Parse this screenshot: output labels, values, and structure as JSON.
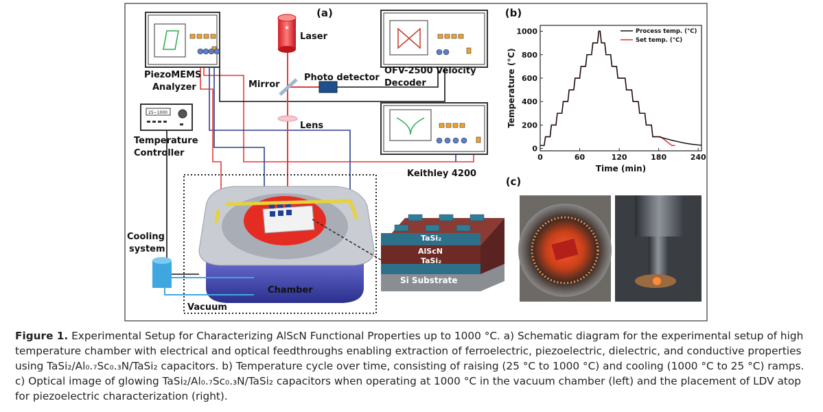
{
  "panels": {
    "a": {
      "label": "(a)",
      "labels": {
        "laser": "Laser",
        "piezo_1": "PiezoMEMS",
        "piezo_2": "Analyzer",
        "mirror": "Mirror",
        "photo": "Photo detector",
        "ofv_1": "OFV-2500 Velocity",
        "ofv_2": "Decoder",
        "lens": "Lens",
        "temp_1": "Temperature",
        "temp_2": "Controller",
        "display": "25~1000",
        "keithley": "Keithley 4200",
        "cool_1": "Cooling",
        "cool_2": "system",
        "chamber": "Chamber",
        "vacuum": "Vacuum",
        "layer_top": "TaSi₂",
        "layer_mid": "AlScN",
        "layer_bot": "TaSi₂",
        "substrate": "Si Substrate"
      }
    },
    "b": {
      "label": "(b)"
    },
    "c": {
      "label": "(c)"
    }
  },
  "chart_data": {
    "type": "line",
    "xlabel": "Time (min)",
    "ylabel": "Temperature (°C)",
    "xlim": [
      0,
      245
    ],
    "xticks": [
      0,
      60,
      120,
      180,
      240
    ],
    "ylim": [
      -20,
      1050
    ],
    "yticks": [
      0,
      200,
      400,
      600,
      800,
      1000
    ],
    "legend": "top-right",
    "series": [
      {
        "name": "Process temp. (°C)",
        "color": "#111111",
        "x": [
          0,
          6,
          8,
          15,
          17,
          24,
          26,
          33,
          35,
          42,
          44,
          51,
          53,
          60,
          62,
          69,
          71,
          78,
          80,
          87,
          89,
          91,
          93,
          98,
          100,
          107,
          109,
          116,
          118,
          129,
          131,
          139,
          141,
          149,
          151,
          159,
          161,
          169,
          171,
          180,
          190,
          200,
          210,
          220,
          230,
          240,
          245
        ],
        "values": [
          25,
          25,
          100,
          100,
          200,
          200,
          300,
          300,
          400,
          400,
          500,
          500,
          600,
          600,
          700,
          700,
          800,
          800,
          900,
          900,
          1000,
          1000,
          900,
          900,
          800,
          800,
          700,
          700,
          600,
          600,
          500,
          500,
          400,
          400,
          300,
          300,
          200,
          200,
          100,
          100,
          85,
          70,
          57,
          45,
          36,
          30,
          28
        ]
      },
      {
        "name": "Set temp. (°C)",
        "color": "#e8262b",
        "x": [
          0,
          6,
          8,
          15,
          17,
          24,
          26,
          33,
          35,
          42,
          44,
          51,
          53,
          60,
          62,
          69,
          71,
          78,
          80,
          87,
          89,
          91,
          93,
          98,
          100,
          107,
          109,
          116,
          118,
          129,
          131,
          139,
          141,
          149,
          151,
          159,
          161,
          169,
          171,
          183,
          200,
          205
        ],
        "values": [
          25,
          25,
          100,
          100,
          200,
          200,
          300,
          300,
          400,
          400,
          500,
          500,
          600,
          600,
          700,
          700,
          800,
          800,
          900,
          900,
          1000,
          1000,
          900,
          900,
          800,
          800,
          700,
          700,
          600,
          600,
          500,
          500,
          400,
          400,
          300,
          300,
          200,
          200,
          100,
          100,
          25,
          25
        ]
      }
    ]
  },
  "caption": {
    "label": "Figure 1.",
    "text": "Experimental Setup for Characterizing AlScN Functional Properties up to 1000 °C. a) Schematic diagram for the experimental setup of high temperature chamber with electrical and optical feedthroughs enabling extraction of ferroelectric, piezoelectric, dielectric, and conductive properties using TaSi₂/Al₀.₇Sc₀.₃N/TaSi₂ capacitors. b) Temperature cycle over time, consisting of raising (25 °C to 1000 °C) and cooling (1000 °C to 25 °C) ramps. c) Optical image of glowing TaSi₂/Al₀.₇Sc₀.₃N/TaSi₂ capacitors when operating at 1000 °C in the vacuum chamber (left) and the placement of LDV atop for piezoelectric characterization (right)."
  }
}
